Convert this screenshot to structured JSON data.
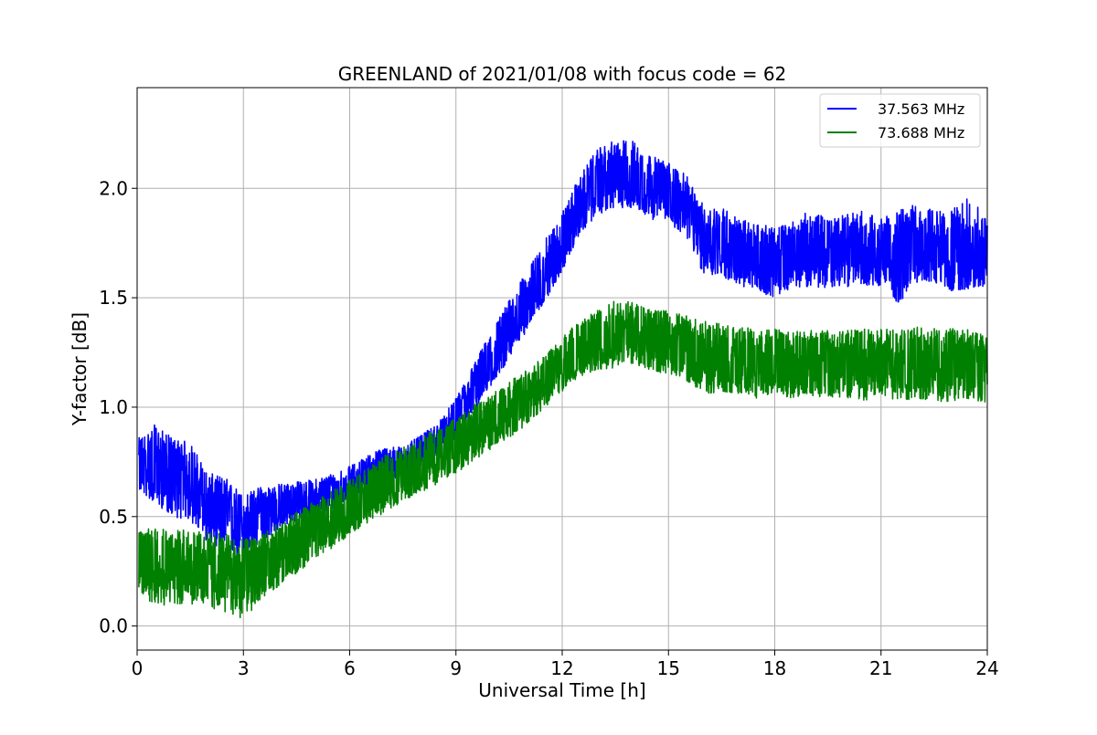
{
  "chart_data": {
    "type": "line",
    "title": "GREENLAND of 2021/01/08 with focus code = 62",
    "xlabel": "Universal Time [h]",
    "ylabel": "Y-factor [dB]",
    "xlim": [
      0,
      24
    ],
    "ylim": [
      -0.11,
      2.46
    ],
    "xticks": [
      0,
      3,
      6,
      9,
      12,
      15,
      18,
      21,
      24
    ],
    "yticks": [
      0.0,
      0.5,
      1.0,
      1.5,
      2.0
    ],
    "xtick_labels": [
      "0",
      "3",
      "6",
      "9",
      "12",
      "15",
      "18",
      "21",
      "24"
    ],
    "ytick_labels": [
      "0.0",
      "0.5",
      "1.0",
      "1.5",
      "2.0"
    ],
    "grid": true,
    "legend_position": "top-right",
    "x_range_plotted": [
      0.05,
      24.0
    ],
    "series": [
      {
        "name": "37.563 MHz",
        "color": "#0000ff",
        "x": [
          0.05,
          0.5,
          1.0,
          1.5,
          2.0,
          2.5,
          3.0,
          3.5,
          4.0,
          4.5,
          5.0,
          5.5,
          6.0,
          6.5,
          7.0,
          7.5,
          8.0,
          8.5,
          9.0,
          9.5,
          10.0,
          10.5,
          11.0,
          11.5,
          12.0,
          12.5,
          13.0,
          13.5,
          14.0,
          14.5,
          15.0,
          15.5,
          16.0,
          16.5,
          17.0,
          17.5,
          18.0,
          18.5,
          19.0,
          19.5,
          20.0,
          20.5,
          21.0,
          21.5,
          22.0,
          22.5,
          23.0,
          23.5,
          24.0
        ],
        "y_mean": [
          0.72,
          0.7,
          0.7,
          0.64,
          0.52,
          0.5,
          0.46,
          0.5,
          0.54,
          0.56,
          0.57,
          0.6,
          0.64,
          0.7,
          0.73,
          0.74,
          0.78,
          0.85,
          0.93,
          1.07,
          1.2,
          1.33,
          1.47,
          1.6,
          1.74,
          1.91,
          2.0,
          2.05,
          2.05,
          2.0,
          1.98,
          1.91,
          1.77,
          1.75,
          1.7,
          1.68,
          1.66,
          1.69,
          1.71,
          1.7,
          1.71,
          1.71,
          1.7,
          1.71,
          1.72,
          1.72,
          1.71,
          1.71,
          1.7
        ],
        "y_min": [
          0.62,
          0.56,
          0.5,
          0.48,
          0.38,
          0.35,
          0.3,
          0.38,
          0.44,
          0.48,
          0.5,
          0.53,
          0.58,
          0.64,
          0.66,
          0.68,
          0.71,
          0.78,
          0.86,
          0.98,
          1.1,
          1.22,
          1.35,
          1.48,
          1.62,
          1.79,
          1.88,
          1.91,
          1.91,
          1.86,
          1.84,
          1.78,
          1.6,
          1.6,
          1.55,
          1.53,
          1.5,
          1.55,
          1.55,
          1.54,
          1.55,
          1.56,
          1.55,
          1.47,
          1.57,
          1.57,
          1.53,
          1.54,
          1.55
        ],
        "y_max": [
          0.86,
          0.92,
          0.86,
          0.84,
          0.7,
          0.68,
          0.6,
          0.64,
          0.65,
          0.66,
          0.67,
          0.7,
          0.73,
          0.78,
          0.82,
          0.82,
          0.87,
          0.93,
          1.04,
          1.2,
          1.35,
          1.49,
          1.62,
          1.76,
          1.89,
          2.06,
          2.18,
          2.22,
          2.22,
          2.15,
          2.12,
          2.06,
          1.92,
          1.92,
          1.86,
          1.84,
          1.82,
          1.85,
          1.9,
          1.86,
          1.88,
          1.9,
          1.86,
          1.9,
          1.93,
          1.9,
          1.9,
          1.97,
          1.85
        ]
      },
      {
        "name": "73.688 MHz",
        "color": "#008000",
        "x": [
          0.05,
          0.5,
          1.0,
          1.5,
          2.0,
          2.5,
          3.0,
          3.5,
          4.0,
          4.5,
          5.0,
          5.5,
          6.0,
          6.5,
          7.0,
          7.5,
          8.0,
          8.5,
          9.0,
          9.5,
          10.0,
          10.5,
          11.0,
          11.5,
          12.0,
          12.5,
          13.0,
          13.5,
          14.0,
          14.5,
          15.0,
          15.5,
          16.0,
          16.5,
          17.0,
          17.5,
          18.0,
          18.5,
          19.0,
          19.5,
          20.0,
          20.5,
          21.0,
          21.5,
          22.0,
          22.5,
          23.0,
          23.5,
          24.0
        ],
        "y_mean": [
          0.28,
          0.28,
          0.27,
          0.27,
          0.26,
          0.26,
          0.25,
          0.29,
          0.33,
          0.38,
          0.43,
          0.48,
          0.54,
          0.59,
          0.64,
          0.68,
          0.73,
          0.77,
          0.81,
          0.87,
          0.93,
          0.98,
          1.04,
          1.11,
          1.19,
          1.26,
          1.3,
          1.33,
          1.34,
          1.31,
          1.29,
          1.27,
          1.23,
          1.22,
          1.21,
          1.2,
          1.2,
          1.2,
          1.2,
          1.2,
          1.19,
          1.2,
          1.2,
          1.2,
          1.2,
          1.19,
          1.19,
          1.19,
          1.18
        ],
        "y_min": [
          0.14,
          0.1,
          0.09,
          0.1,
          0.08,
          0.06,
          0.03,
          0.12,
          0.18,
          0.24,
          0.3,
          0.35,
          0.42,
          0.47,
          0.52,
          0.57,
          0.61,
          0.65,
          0.7,
          0.75,
          0.81,
          0.86,
          0.92,
          0.99,
          1.07,
          1.14,
          1.17,
          1.18,
          1.2,
          1.16,
          1.15,
          1.12,
          1.05,
          1.07,
          1.06,
          1.04,
          1.05,
          1.04,
          1.05,
          1.04,
          1.04,
          1.03,
          1.05,
          1.03,
          1.04,
          1.03,
          1.02,
          1.03,
          1.02
        ],
        "y_max": [
          0.44,
          0.48,
          0.44,
          0.44,
          0.43,
          0.42,
          0.4,
          0.43,
          0.47,
          0.52,
          0.57,
          0.62,
          0.67,
          0.72,
          0.78,
          0.82,
          0.87,
          0.9,
          0.95,
          1.01,
          1.06,
          1.12,
          1.17,
          1.24,
          1.33,
          1.4,
          1.46,
          1.5,
          1.48,
          1.45,
          1.44,
          1.42,
          1.4,
          1.38,
          1.37,
          1.36,
          1.36,
          1.35,
          1.36,
          1.35,
          1.35,
          1.36,
          1.36,
          1.35,
          1.37,
          1.36,
          1.36,
          1.36,
          1.33
        ]
      }
    ]
  }
}
